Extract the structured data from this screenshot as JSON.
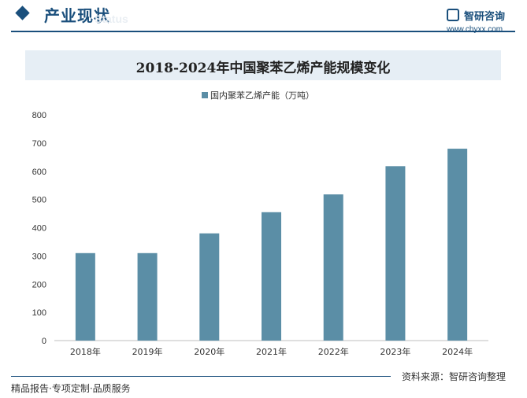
{
  "header": {
    "title": "产业现状",
    "subtitle": "Status"
  },
  "logo": {
    "name": "智研咨询",
    "url": "www.chyxx.com"
  },
  "chart_data": {
    "type": "bar",
    "title": "2018-2024年中国聚苯乙烯产能规模变化",
    "categories": [
      "2018年",
      "2019年",
      "2020年",
      "2021年",
      "2022年",
      "2023年",
      "2024年"
    ],
    "series": [
      {
        "name": "国内聚苯乙烯产能（万吨）",
        "values": [
          310,
          310,
          380,
          455,
          518,
          618,
          680
        ]
      }
    ],
    "ylim": [
      0,
      800
    ],
    "yticks": [
      0,
      100,
      200,
      300,
      400,
      500,
      600,
      700,
      800
    ],
    "grid": false,
    "legend": "top",
    "bar_color": "#5b8ea6"
  },
  "footer": {
    "source": "资料来源：智研咨询整理",
    "tagline": "精品报告·专项定制·品质服务"
  }
}
